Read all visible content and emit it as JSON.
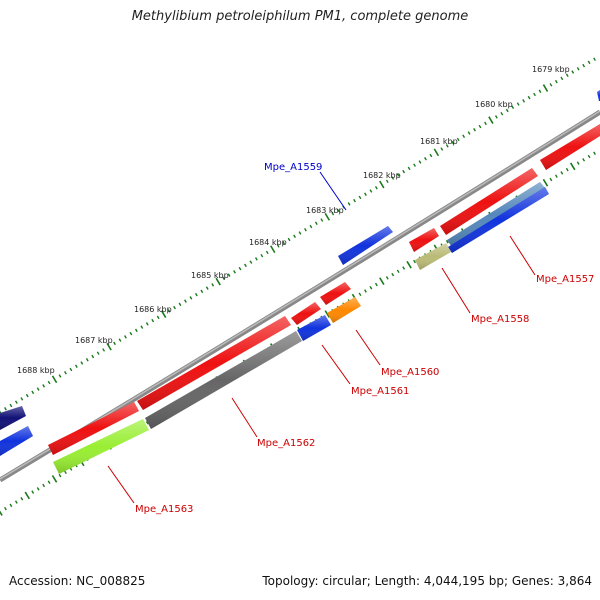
{
  "title": "Methylibium petroleiphilum PM1, complete genome",
  "footer": {
    "accession": "Accession: NC_008825",
    "summary": "Topology: circular; Length: 4,044,195 bp; Genes: 3,864"
  },
  "ruler": {
    "labels": [
      "1679 kbp",
      "1680 kbp",
      "1681 kbp",
      "1682 kbp",
      "1683 kbp",
      "1684 kbp",
      "1685 kbp",
      "1686 kbp",
      "1687 kbp",
      "1688 kbp"
    ],
    "tick_color": "#1a7a1a",
    "backbone_color": "#888888"
  },
  "colors": {
    "red": "#ee1111",
    "blue": "#1133dd",
    "navy": "#111177",
    "steel": "#5588bb",
    "olive": "#bbbb77",
    "orange": "#ff8800",
    "gray": "#666666",
    "lime": "#99ee33",
    "label_red": "#cc0000",
    "label_blue": "#0000cc"
  },
  "genes": [
    {
      "name": "Mpe_A1557",
      "color": "label_red"
    },
    {
      "name": "Mpe_A1558",
      "color": "label_red"
    },
    {
      "name": "Mpe_A1559",
      "color": "label_blue"
    },
    {
      "name": "Mpe_A1560",
      "color": "label_red"
    },
    {
      "name": "Mpe_A1561",
      "color": "label_red"
    },
    {
      "name": "Mpe_A1562",
      "color": "label_red"
    },
    {
      "name": "Mpe_A1563",
      "color": "label_red"
    }
  ]
}
